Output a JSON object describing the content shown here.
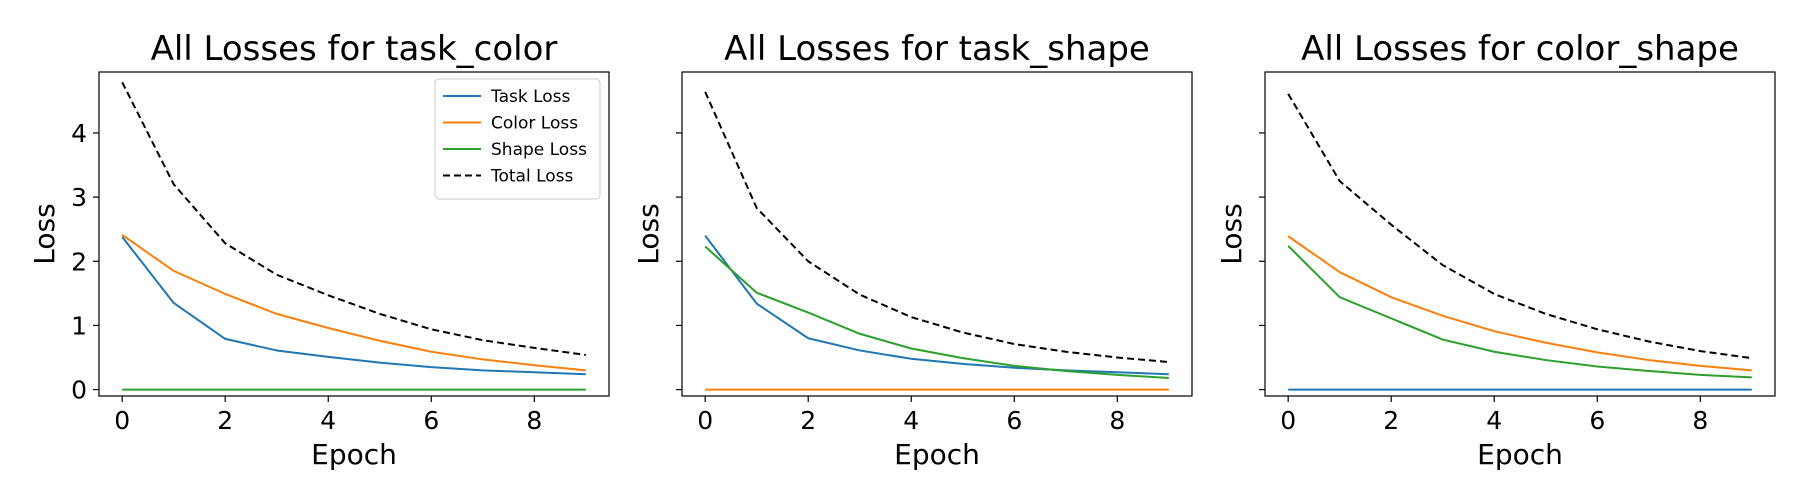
{
  "chart_data": [
    {
      "type": "line",
      "title": "All Losses for task_color",
      "xlabel": "Epoch",
      "ylabel": "Loss",
      "xlim": [
        -0.45,
        9.45
      ],
      "ylim": [
        -0.1,
        4.95
      ],
      "xticks": [
        0,
        2,
        4,
        6,
        8
      ],
      "yticks": [
        0,
        1,
        2,
        3,
        4
      ],
      "show_ytick_labels": true,
      "legend": "top-right",
      "x": [
        0,
        1,
        2,
        3,
        4,
        5,
        6,
        7,
        8,
        9
      ],
      "series": [
        {
          "name": "Task Loss",
          "color": "#1f77b4",
          "dash": "solid",
          "values": [
            2.38,
            1.35,
            0.79,
            0.61,
            0.51,
            0.42,
            0.35,
            0.3,
            0.27,
            0.24
          ]
        },
        {
          "name": "Color Loss",
          "color": "#ff7f0e",
          "dash": "solid",
          "values": [
            2.41,
            1.85,
            1.49,
            1.18,
            0.96,
            0.76,
            0.59,
            0.47,
            0.38,
            0.3
          ]
        },
        {
          "name": "Shape Loss",
          "color": "#2ca02c",
          "dash": "solid",
          "values": [
            0,
            0,
            0,
            0,
            0,
            0,
            0,
            0,
            0,
            0
          ]
        },
        {
          "name": "Total Loss",
          "color": "#000000",
          "dash": "dashed",
          "values": [
            4.79,
            3.2,
            2.28,
            1.79,
            1.47,
            1.18,
            0.94,
            0.77,
            0.65,
            0.54
          ]
        }
      ]
    },
    {
      "type": "line",
      "title": "All Losses for task_shape",
      "xlabel": "Epoch",
      "ylabel": "Loss",
      "xlim": [
        -0.45,
        9.45
      ],
      "ylim": [
        -0.1,
        4.95
      ],
      "xticks": [
        0,
        2,
        4,
        6,
        8
      ],
      "yticks": [
        0,
        1,
        2,
        3,
        4
      ],
      "show_ytick_labels": false,
      "x": [
        0,
        1,
        2,
        3,
        4,
        5,
        6,
        7,
        8,
        9
      ],
      "series": [
        {
          "name": "Task Loss",
          "color": "#1f77b4",
          "dash": "solid",
          "values": [
            2.4,
            1.34,
            0.8,
            0.61,
            0.48,
            0.4,
            0.34,
            0.3,
            0.27,
            0.24
          ]
        },
        {
          "name": "Color Loss",
          "color": "#ff7f0e",
          "dash": "solid",
          "values": [
            0,
            0,
            0,
            0,
            0,
            0,
            0,
            0,
            0,
            0
          ]
        },
        {
          "name": "Shape Loss",
          "color": "#2ca02c",
          "dash": "solid",
          "values": [
            2.23,
            1.51,
            1.2,
            0.87,
            0.64,
            0.49,
            0.37,
            0.29,
            0.23,
            0.18
          ]
        },
        {
          "name": "Total Loss",
          "color": "#000000",
          "dash": "dashed",
          "values": [
            4.64,
            2.83,
            2.0,
            1.48,
            1.13,
            0.89,
            0.71,
            0.59,
            0.5,
            0.43
          ]
        }
      ]
    },
    {
      "type": "line",
      "title": "All Losses for color_shape",
      "xlabel": "Epoch",
      "ylabel": "Loss",
      "xlim": [
        -0.45,
        9.45
      ],
      "ylim": [
        -0.1,
        4.95
      ],
      "xticks": [
        0,
        2,
        4,
        6,
        8
      ],
      "yticks": [
        0,
        1,
        2,
        3,
        4
      ],
      "show_ytick_labels": false,
      "x": [
        0,
        1,
        2,
        3,
        4,
        5,
        6,
        7,
        8,
        9
      ],
      "series": [
        {
          "name": "Task Loss",
          "color": "#1f77b4",
          "dash": "solid",
          "values": [
            0,
            0,
            0,
            0,
            0,
            0,
            0,
            0,
            0,
            0
          ]
        },
        {
          "name": "Color Loss",
          "color": "#ff7f0e",
          "dash": "solid",
          "values": [
            2.39,
            1.83,
            1.44,
            1.15,
            0.91,
            0.73,
            0.58,
            0.46,
            0.37,
            0.3
          ]
        },
        {
          "name": "Shape Loss",
          "color": "#2ca02c",
          "dash": "solid",
          "values": [
            2.24,
            1.44,
            1.11,
            0.78,
            0.59,
            0.46,
            0.36,
            0.29,
            0.23,
            0.19
          ]
        },
        {
          "name": "Total Loss",
          "color": "#000000",
          "dash": "dashed",
          "values": [
            4.61,
            3.25,
            2.57,
            1.94,
            1.49,
            1.18,
            0.94,
            0.75,
            0.6,
            0.49
          ]
        }
      ]
    }
  ]
}
